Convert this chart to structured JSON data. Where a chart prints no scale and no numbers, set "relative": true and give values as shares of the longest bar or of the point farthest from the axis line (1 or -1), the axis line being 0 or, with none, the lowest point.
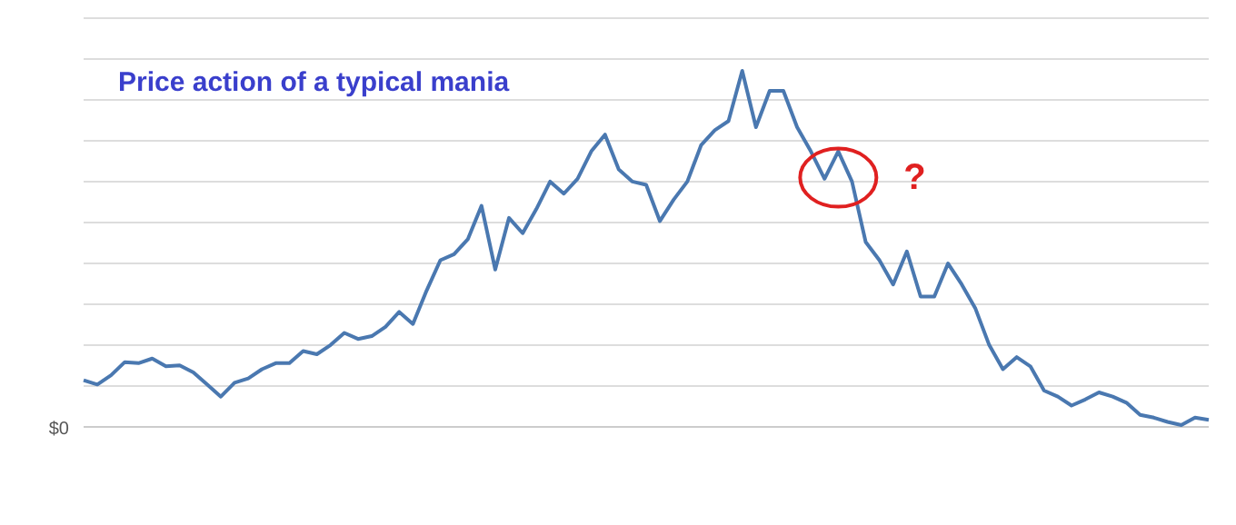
{
  "chart_data": {
    "type": "line",
    "title": "Price action of a typical mania",
    "relative": true,
    "grid": true,
    "categories": [
      null,
      null,
      null,
      null,
      null,
      null,
      null,
      null,
      null,
      null,
      null,
      null,
      null,
      null,
      null,
      null,
      null,
      null,
      null,
      null,
      null,
      null,
      null,
      null,
      null,
      null,
      null,
      null,
      null,
      null,
      null,
      null,
      null,
      null,
      null,
      null,
      null,
      null,
      null,
      null,
      null,
      null,
      null,
      null,
      null,
      null,
      null,
      null,
      null,
      null,
      null,
      null,
      null,
      null,
      null,
      null,
      null,
      null,
      null,
      null,
      null,
      null,
      null,
      null,
      null,
      null,
      null,
      null,
      null,
      null,
      null,
      null,
      null,
      null,
      null,
      null,
      null,
      null,
      null,
      null,
      null,
      null,
      null
    ],
    "series": [
      {
        "color": "#4a78b0",
        "values": [
          0.131,
          0.119,
          0.145,
          0.182,
          0.179,
          0.192,
          0.17,
          0.173,
          0.153,
          0.119,
          0.085,
          0.124,
          0.136,
          0.162,
          0.179,
          0.179,
          0.213,
          0.204,
          0.23,
          0.264,
          0.247,
          0.255,
          0.281,
          0.323,
          0.289,
          0.383,
          0.468,
          0.485,
          0.527,
          0.621,
          0.442,
          0.587,
          0.544,
          0.612,
          0.689,
          0.655,
          0.697,
          0.774,
          0.821,
          0.723,
          0.689,
          0.68,
          0.578,
          0.638,
          0.689,
          0.791,
          0.833,
          0.859,
          1,
          0.842,
          0.944,
          0.944,
          0.842,
          0.774,
          0.697,
          0.774,
          0.689,
          0.519,
          0.468,
          0.4,
          0.493,
          0.366,
          0.366,
          0.459,
          0.4,
          0.332,
          0.23,
          0.162,
          0.196,
          0.17,
          0.102,
          0.085,
          0.06,
          0.077,
          0.097,
          0.085,
          0.068,
          0.034,
          0.026,
          0.014,
          0.005,
          0.026,
          0.02
        ]
      }
    ],
    "annotations": [
      "$0",
      "?"
    ]
  }
}
